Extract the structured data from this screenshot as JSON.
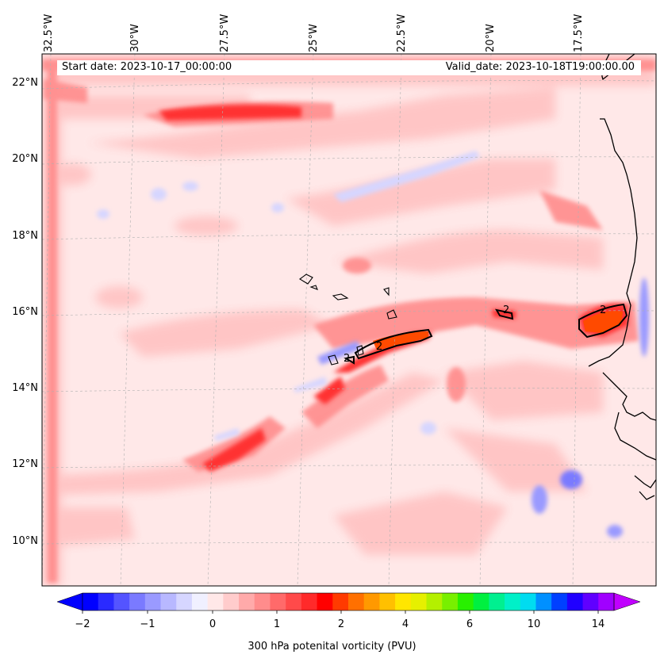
{
  "map": {
    "start_date": "Start date: 2023-10-17_00:00:00",
    "valid_date": "Valid_date: 2023-10-18T19:00:00.00",
    "lon_labels": [
      "32.5°W",
      "30°W",
      "27.5°W",
      "25°W",
      "22.5°W",
      "20°W",
      "17.5°W"
    ],
    "lat_labels": [
      "22°N",
      "20°N",
      "18°N",
      "16°N",
      "14°N",
      "12°N",
      "10°N"
    ],
    "contour_labels": [
      "2",
      "2",
      "2",
      "2"
    ],
    "colors": {
      "bg": "#ffe8e8",
      "light_red": "#ffc4c4",
      "mid_red": "#ff8c8c",
      "strong_red": "#ff3030",
      "peak": "#ff4a00",
      "light_blue": "#e8e8ff",
      "mid_blue": "#9090ff"
    }
  },
  "colorbar": {
    "title": "300 hPa potenital vorticity (PVU)",
    "ticks": [
      "−2",
      "−1",
      "0",
      "1",
      "2",
      "4",
      "6",
      "10",
      "14"
    ],
    "colors": [
      "#0000ff",
      "#2a2aff",
      "#5454ff",
      "#7a7aff",
      "#9a9aff",
      "#b8b8ff",
      "#d6d6ff",
      "#f0f0ff",
      "#ffe8e8",
      "#ffcccc",
      "#ffaaaa",
      "#ff8c8c",
      "#ff6a6a",
      "#ff4a4a",
      "#ff2a2a",
      "#ff0000",
      "#ff3a00",
      "#ff7000",
      "#ff9900",
      "#ffc000",
      "#ffe600",
      "#e6f000",
      "#b4f000",
      "#78f000",
      "#28f000",
      "#00f040",
      "#00f090",
      "#00f0c8",
      "#00dcf0",
      "#0090ff",
      "#0040ff",
      "#2000ff",
      "#6000ff",
      "#a000ff"
    ]
  }
}
